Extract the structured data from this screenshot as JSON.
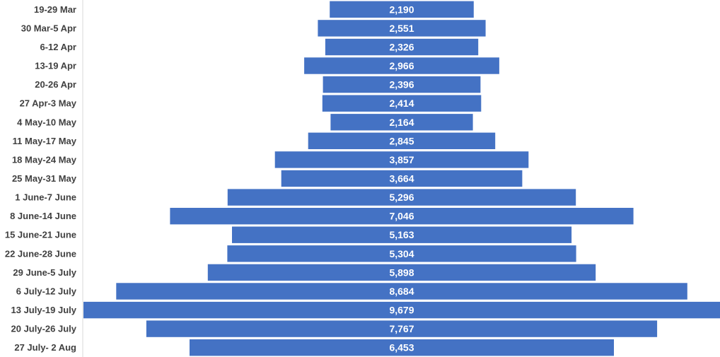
{
  "chart_data": {
    "type": "bar",
    "orientation": "horizontal",
    "style": "centered funnel",
    "categories": [
      "19-29 Mar",
      "30 Mar-5 Apr",
      "6-12 Apr",
      "13-19 Apr",
      "20-26 Apr",
      "27 Apr-3 May",
      "4 May-10 May",
      "11 May-17 May",
      "18 May-24 May",
      "25 May-31 May",
      "1 June-7 June",
      "8 June-14 June",
      "15 June-21 June",
      "22 June-28 June",
      "29 June-5 July",
      "6 July-12 July",
      "13 July-19 July",
      "20 July-26 July",
      "27 July- 2 Aug"
    ],
    "values": [
      2190,
      2551,
      2326,
      2966,
      2396,
      2414,
      2164,
      2845,
      3857,
      3664,
      5296,
      7046,
      5163,
      5304,
      5898,
      8684,
      9679,
      7767,
      6453
    ],
    "value_labels": [
      "2,190",
      "2,551",
      "2,326",
      "2,966",
      "2,396",
      "2,414",
      "2,164",
      "2,845",
      "3,857",
      "3,664",
      "5,296",
      "7,046",
      "5,163",
      "5,304",
      "5,898",
      "8,684",
      "9,679",
      "7,767",
      "6,453"
    ],
    "title": "",
    "xlabel": "",
    "ylabel": "",
    "xlim": [
      0,
      9679
    ],
    "grid": false,
    "legend": "none",
    "colors": {
      "bar": "#4472c4",
      "category_label": "#404040",
      "value_label": "#ffffff",
      "axis_line": "#d9d9d9"
    }
  }
}
